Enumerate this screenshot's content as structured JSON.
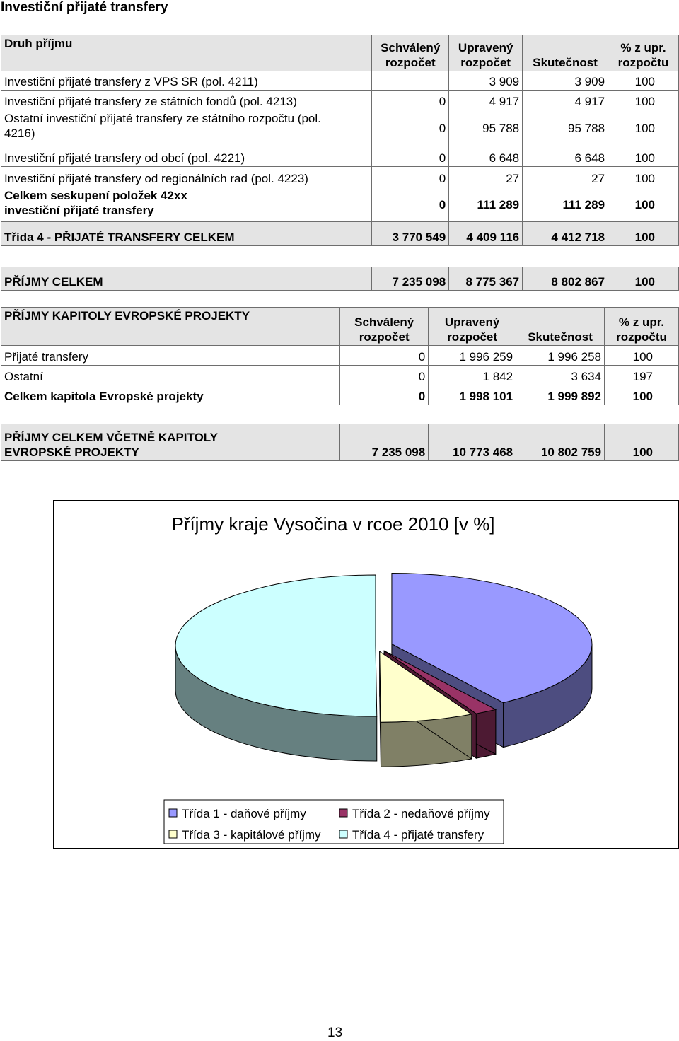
{
  "heading": "Investiční přijaté transfery",
  "table1": {
    "header": {
      "label": "Druh příjmu",
      "schvaleny": "Schválený rozpočet",
      "upraveny": "Upravený rozpočet",
      "skutecnost": "Skutečnost",
      "procento": "% z upr. rozpočtu"
    },
    "rows": [
      {
        "label": "Investiční přijaté transfery z VPS SR (pol. 4211)",
        "schvaleny": "",
        "upraveny": "3 909",
        "skutecnost": "3 909",
        "procento": "100"
      },
      {
        "label": "Investiční přijaté transfery ze státních fondů (pol. 4213)",
        "schvaleny": "0",
        "upraveny": "4 917",
        "skutecnost": "4 917",
        "procento": "100"
      },
      {
        "label": "Ostatní investiční přijaté transfery ze státního rozpočtu (pol. 4216)",
        "schvaleny": "0",
        "upraveny": "95 788",
        "skutecnost": "95 788",
        "procento": "100"
      },
      {
        "label": "Investiční přijaté transfery od obcí (pol. 4221)",
        "schvaleny": "0",
        "upraveny": "6 648",
        "skutecnost": "6 648",
        "procento": "100"
      },
      {
        "label": "Investiční přijaté transfery od regionálních rad (pol. 4223)",
        "schvaleny": "0",
        "upraveny": "27",
        "skutecnost": "27",
        "procento": "100"
      }
    ],
    "subtotal": {
      "label": "Celkem seskupení položek 42xx investiční přijaté transfery",
      "schvaleny": "0",
      "upraveny": "111 289",
      "skutecnost": "111 289",
      "procento": "100"
    },
    "total": {
      "label": "Třída 4 - PŘIJATÉ TRANSFERY CELKEM",
      "schvaleny": "3 770 549",
      "upraveny": "4 409 116",
      "skutecnost": "4 412 718",
      "procento": "100"
    }
  },
  "prijmy_celkem": {
    "label": "PŘÍJMY CELKEM",
    "schvaleny": "7 235 098",
    "upraveny": "8 775 367",
    "skutecnost": "8 802 867",
    "procento": "100"
  },
  "table2": {
    "header": {
      "label": "PŘÍJMY KAPITOLY EVROPSKÉ PROJEKTY",
      "schvaleny": "Schválený rozpočet",
      "upraveny": "Upravený rozpočet",
      "skutecnost": "Skutečnost",
      "procento": "% z upr. rozpočtu"
    },
    "rows": [
      {
        "label": "Přijaté transfery",
        "schvaleny": "0",
        "upraveny": "1 996 259",
        "skutecnost": "1 996 258",
        "procento": "100"
      },
      {
        "label": "Ostatní",
        "schvaleny": "0",
        "upraveny": "1 842",
        "skutecnost": "3 634",
        "procento": "197"
      }
    ],
    "total": {
      "label": "Celkem kapitola Evropské projekty",
      "schvaleny": "0",
      "upraveny": "1 998 101",
      "skutecnost": "1 999 892",
      "procento": "100"
    }
  },
  "grand_total": {
    "label": "PŘÍJMY CELKEM VČETNĚ KAPITOLY EVROPSKÉ PROJEKTY",
    "schvaleny": "7 235 098",
    "upraveny": "10 773 468",
    "skutecnost": "10 802 759",
    "procento": "100"
  },
  "chart_data": {
    "type": "pie",
    "title": "Příjmy kraje Vysočina v rcoe 2010 [v %]",
    "categories": [
      "Třída 1 - daňové příjmy",
      "Třída 2 - nedaňové příjmy",
      "Třída 3 - kapitálové příjmy",
      "Třída 4 - přijaté transfery"
    ],
    "values": [
      40.6,
      1.8,
      7.5,
      50.1
    ],
    "colors": {
      "Třída 1 - daňové příjmy": "#9999ff",
      "Třída 2 - nedaňové příjmy": "#993366",
      "Třída 3 - kapitálové příjmy": "#ffffcc",
      "Třída 4 - přijaté transfery": "#ccffff"
    },
    "legend": "bottom",
    "style": "3d-exploded"
  },
  "page_number": "13"
}
